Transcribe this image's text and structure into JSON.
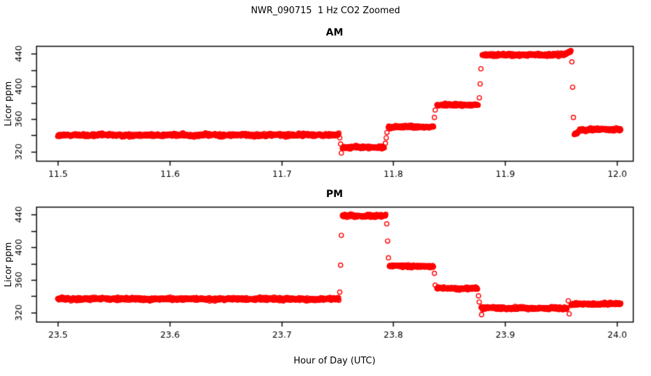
{
  "title": "NWR_090715  1 Hz CO2 Zoomed",
  "xlabel": "Hour of Day (UTC)",
  "style": {
    "point_color": "#FF0000",
    "axis_color": "#000000",
    "background": "#FFFFFF",
    "marker": "open-circle"
  },
  "chart_data": [
    {
      "type": "scatter",
      "title": "AM",
      "ylabel": "Licor ppm",
      "sample_rate_hz": 1,
      "xlim": [
        11.48072,
        12.0143
      ],
      "ylim": [
        308.9,
        449.4
      ],
      "xticks": {
        "values": [
          11.5,
          11.6,
          11.7,
          11.8,
          11.9,
          12.0
        ],
        "labels": [
          "11.5",
          "11.6",
          "11.7",
          "11.8",
          "11.9",
          "12.0"
        ]
      },
      "yticks": {
        "labeled_values": [
          320,
          360,
          400,
          440
        ],
        "labels": [
          "320",
          "360",
          "400",
          "440"
        ],
        "unlabeled_values": [
          340,
          380,
          420
        ]
      },
      "plateaus": [
        {
          "x0": 11.5,
          "x1": 11.7515,
          "y0": 340.2,
          "y1": 340.6,
          "noise": 0.9
        },
        {
          "x0": 11.7545,
          "x1": 11.792,
          "y0": 325.4,
          "y1": 325.4,
          "noise": 0.8
        },
        {
          "x0": 11.7955,
          "x1": 11.836,
          "y0": 350.4,
          "y1": 350.4,
          "noise": 0.8
        },
        {
          "x0": 11.839,
          "x1": 11.876,
          "y0": 377.4,
          "y1": 377.4,
          "noise": 0.8
        },
        {
          "x0": 11.8795,
          "x1": 11.952,
          "y0": 438.4,
          "y1": 438.6,
          "noise": 0.8
        },
        {
          "x0": 11.952,
          "x1": 11.959,
          "y0": 438.8,
          "y1": 443.2,
          "noise": 0.7
        },
        {
          "x0": 11.9618,
          "x1": 11.9665,
          "y0": 341.3,
          "y1": 345.8,
          "noise": 0.6
        },
        {
          "x0": 11.9665,
          "x1": 12.0035,
          "y0": 346.8,
          "y1": 347.6,
          "noise": 0.8
        }
      ],
      "transition_points": [
        [
          11.7522,
          337.0
        ],
        [
          11.7529,
          329.5
        ],
        [
          11.7536,
          318.5
        ],
        [
          11.793,
          330.5
        ],
        [
          11.7937,
          337.0
        ],
        [
          11.7944,
          343.5
        ],
        [
          11.8368,
          362.0
        ],
        [
          11.8375,
          371.0
        ],
        [
          11.877,
          386.0
        ],
        [
          11.8777,
          403.0
        ],
        [
          11.8784,
          421.5
        ],
        [
          11.9597,
          430.0
        ],
        [
          11.9604,
          399.0
        ],
        [
          11.9611,
          362.0
        ]
      ]
    },
    {
      "type": "scatter",
      "title": "PM",
      "ylabel": "Licor ppm",
      "sample_rate_hz": 1,
      "xlim": [
        23.48072,
        24.0143
      ],
      "ylim": [
        308.9,
        449.4
      ],
      "xticks": {
        "values": [
          23.5,
          23.6,
          23.7,
          23.8,
          23.9,
          24.0
        ],
        "labels": [
          "23.5",
          "23.6",
          "23.7",
          "23.8",
          "23.9",
          "24.0"
        ]
      },
      "yticks": {
        "labeled_values": [
          320,
          360,
          400,
          440
        ],
        "labels": [
          "320",
          "360",
          "400",
          "440"
        ],
        "unlabeled_values": [
          340,
          380,
          420
        ]
      },
      "plateaus": [
        {
          "x0": 23.5,
          "x1": 23.7515,
          "y0": 336.8,
          "y1": 336.4,
          "noise": 0.9
        },
        {
          "x0": 23.7545,
          "x1": 23.7935,
          "y0": 438.4,
          "y1": 438.2,
          "noise": 0.8
        },
        {
          "x0": 23.7965,
          "x1": 23.836,
          "y0": 376.9,
          "y1": 376.6,
          "noise": 0.8
        },
        {
          "x0": 23.839,
          "x1": 23.8755,
          "y0": 349.7,
          "y1": 349.4,
          "noise": 0.8
        },
        {
          "x0": 23.8785,
          "x1": 23.9555,
          "y0": 325.5,
          "y1": 325.2,
          "noise": 0.8
        },
        {
          "x0": 23.959,
          "x1": 24.0035,
          "y0": 330.3,
          "y1": 331.0,
          "noise": 0.8
        }
      ],
      "transition_points": [
        [
          23.7522,
          345.0
        ],
        [
          23.7529,
          378.0
        ],
        [
          23.7536,
          414.5
        ],
        [
          23.7942,
          428.5
        ],
        [
          23.795,
          407.5
        ],
        [
          23.7957,
          387.0
        ],
        [
          23.8368,
          368.0
        ],
        [
          23.8375,
          353.5
        ],
        [
          23.8762,
          340.5
        ],
        [
          23.8769,
          333.0
        ],
        [
          23.879,
          317.5
        ],
        [
          23.9565,
          334.5
        ],
        [
          23.9573,
          318.5
        ]
      ]
    }
  ]
}
